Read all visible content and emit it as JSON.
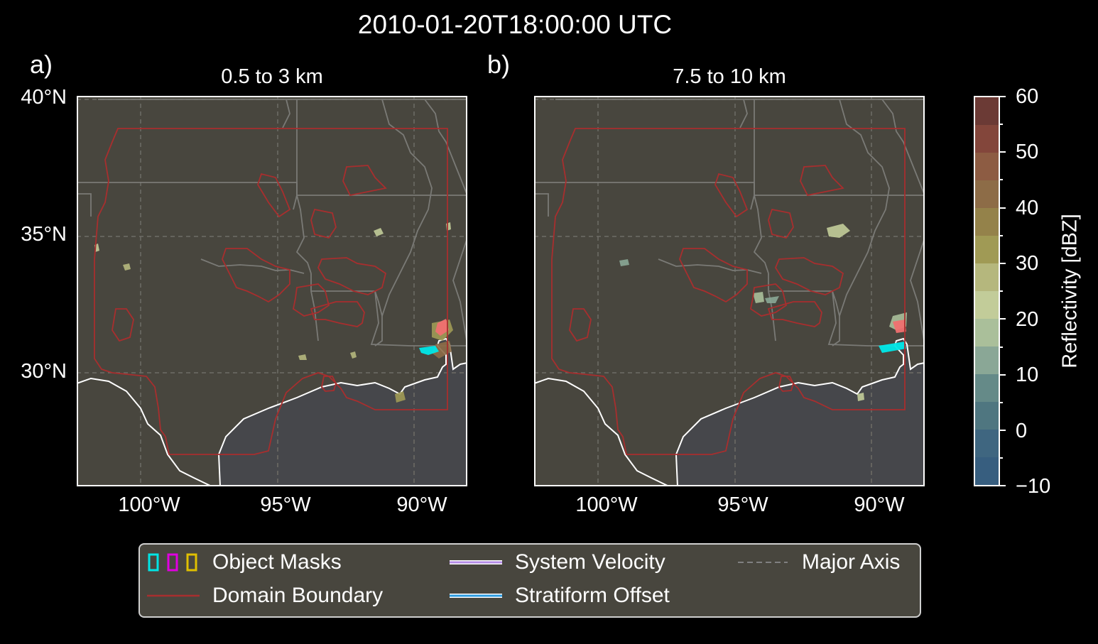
{
  "title": "2010-01-20T18:00:00 UTC",
  "panels": [
    {
      "label": "a)",
      "subtitle": "0.5 to 3 km"
    },
    {
      "label": "b)",
      "subtitle": "7.5 to 10 km"
    }
  ],
  "lat_labels": [
    "40°N",
    "35°N",
    "30°N"
  ],
  "lon_labels": [
    "100°W",
    "95°W",
    "90°W"
  ],
  "colorbar": {
    "label": "Reflectivity [dBZ]",
    "ticks": [
      "60",
      "50",
      "40",
      "30",
      "20",
      "10",
      "0",
      "−10"
    ],
    "colors": [
      "#6b3a35",
      "#83463b",
      "#8d5c43",
      "#8d6c47",
      "#94824a",
      "#a09a55",
      "#b5b77d",
      "#c2cc99",
      "#aabf9a",
      "#8aa796",
      "#658a88",
      "#4f7680",
      "#3f6680",
      "#375e7f"
    ]
  },
  "colors": {
    "land": "#48463e",
    "ocean": "#46474b",
    "domain": "#a82e2e",
    "coast": "#ffffff",
    "borders": "#7a7a76",
    "grid": "#6e6d66"
  },
  "legend": {
    "object_masks": "Object Masks",
    "domain_boundary": "Domain Boundary",
    "system_velocity": "System Velocity",
    "stratiform_offset": "Stratiform Offset",
    "major_axis": "Major Axis"
  }
}
